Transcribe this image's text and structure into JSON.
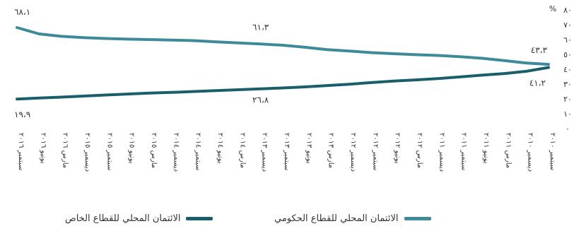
{
  "chart_data": {
    "type": "line",
    "y_unit": "%",
    "ylim": [
      0,
      80
    ],
    "y_ticks": [
      "٠",
      "١٠",
      "٢٠",
      "٣٠",
      "٤٠",
      "٥٠",
      "٦٠",
      "٧٠",
      "٨٠"
    ],
    "x_order": "right-to-left",
    "categories": [
      "سبتمبر ٢٠١٠",
      "ديسمبر ٢٠١٠",
      "مارس ٢٠١١",
      "يونيو ٢٠١١",
      "سبتمبر ٢٠١١",
      "ديسمبر ٢٠١١",
      "مارس ٢٠١٢",
      "يونيو ٢٠١٢",
      "سبتمبر ٢٠١٢",
      "ديسمبر ٢٠١٢",
      "مارس ٢٠١٣",
      "يونيو ٢٠١٣",
      "سبتمبر ٢٠١٣",
      "ديسمبر ٢٠١٣",
      "مارس ٢٠١٤",
      "يونيو ٢٠١٤",
      "سبتمبر ٢٠١٤",
      "ديسمبر ٢٠١٤",
      "مارس ٢٠١٥",
      "يونيو ٢٠١٥",
      "سبتمبر ٢٠١٥",
      "ديسمبر ٢٠١٥",
      "مارس ٢٠١٦",
      "يونيو ٢٠١٦",
      "سبتمبر ٢٠١٦"
    ],
    "series": [
      {
        "name": "الائتمان المحلي للقطاع الحكومي",
        "color": "#3f8a9a",
        "values": [
          43.3,
          44.2,
          45.8,
          47.4,
          48.5,
          49.3,
          49.8,
          50.5,
          51.2,
          52.3,
          53.2,
          54.8,
          56.2,
          57.0,
          57.7,
          58.5,
          59.3,
          59.6,
          60.0,
          60.3,
          60.7,
          61.3,
          62.2,
          63.8,
          68.1
        ],
        "start_label": "٦٨،١",
        "mid_label": "٦١،٣",
        "end_label": "٤٣،٣"
      },
      {
        "name": "الائتمان المحلي للقطاع الخاص",
        "color": "#1b5e6b",
        "values": [
          41.2,
          38.6,
          37.1,
          36.0,
          34.8,
          33.7,
          32.8,
          32.0,
          31.0,
          29.9,
          29.0,
          28.1,
          27.4,
          26.8,
          26.2,
          25.6,
          25.0,
          24.4,
          23.9,
          23.3,
          22.6,
          21.9,
          21.2,
          20.6,
          19.9
        ],
        "start_label": "١٩،٩",
        "mid_label": "٢٦،٨",
        "end_label": "٤١،٢"
      }
    ]
  }
}
